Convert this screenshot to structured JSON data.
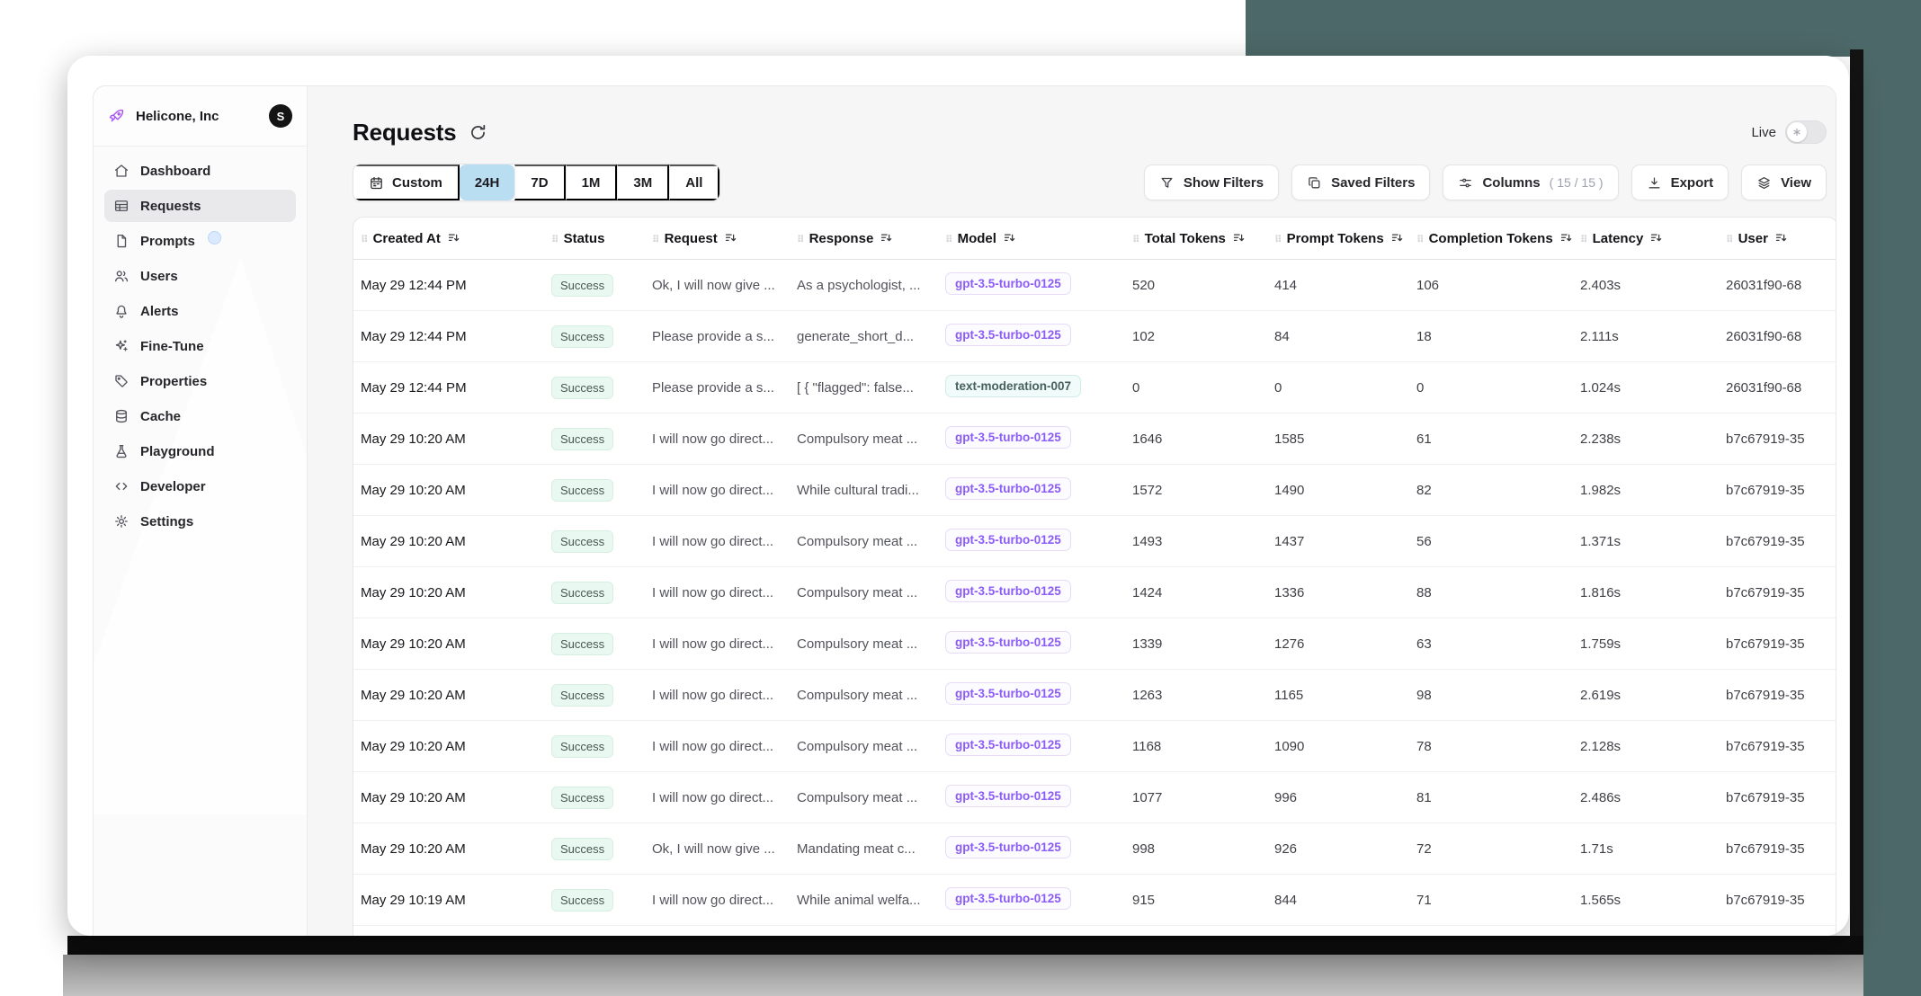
{
  "org": {
    "name": "Helicone, Inc",
    "avatar_initial": "S",
    "logo_icon": "rocket"
  },
  "sidebar": {
    "items": [
      {
        "label": "Dashboard",
        "icon": "home",
        "active": false,
        "badge": false
      },
      {
        "label": "Requests",
        "icon": "table",
        "active": true,
        "badge": false
      },
      {
        "label": "Prompts",
        "icon": "file",
        "active": false,
        "badge": true
      },
      {
        "label": "Users",
        "icon": "users",
        "active": false,
        "badge": false
      },
      {
        "label": "Alerts",
        "icon": "bell",
        "active": false,
        "badge": false
      },
      {
        "label": "Fine-Tune",
        "icon": "sparkles",
        "active": false,
        "badge": false
      },
      {
        "label": "Properties",
        "icon": "tag",
        "active": false,
        "badge": false
      },
      {
        "label": "Cache",
        "icon": "database",
        "active": false,
        "badge": false
      },
      {
        "label": "Playground",
        "icon": "flask",
        "active": false,
        "badge": false
      },
      {
        "label": "Developer",
        "icon": "code",
        "active": false,
        "badge": false
      },
      {
        "label": "Settings",
        "icon": "gear",
        "active": false,
        "badge": false
      }
    ]
  },
  "header": {
    "title": "Requests",
    "live_label": "Live"
  },
  "toolbar": {
    "time_ranges": [
      {
        "label": "Custom",
        "icon": "calendar",
        "selected": false
      },
      {
        "label": "24H",
        "selected": true
      },
      {
        "label": "7D",
        "selected": false
      },
      {
        "label": "1M",
        "selected": false
      },
      {
        "label": "3M",
        "selected": false
      },
      {
        "label": "All",
        "selected": false
      }
    ],
    "actions": [
      {
        "label": "Show Filters",
        "icon": "funnel",
        "count": ""
      },
      {
        "label": "Saved Filters",
        "icon": "copy",
        "count": ""
      },
      {
        "label": "Columns",
        "icon": "sliders",
        "count": "( 15 / 15 )"
      },
      {
        "label": "Export",
        "icon": "download",
        "count": ""
      },
      {
        "label": "View",
        "icon": "layers",
        "count": ""
      }
    ]
  },
  "table": {
    "columns": [
      {
        "label": "Created At",
        "sortable": true
      },
      {
        "label": "Status",
        "sortable": false
      },
      {
        "label": "Request",
        "sortable": true
      },
      {
        "label": "Response",
        "sortable": true
      },
      {
        "label": "Model",
        "sortable": true
      },
      {
        "label": "Total Tokens",
        "sortable": true
      },
      {
        "label": "Prompt Tokens",
        "sortable": true
      },
      {
        "label": "Completion Tokens",
        "sortable": true
      },
      {
        "label": "Latency",
        "sortable": true
      },
      {
        "label": "User",
        "sortable": true
      }
    ],
    "rows": [
      {
        "created_at": "May 29 12:44 PM",
        "status": "Success",
        "request": "Ok, I will now give ...",
        "response": "As a psychologist, ...",
        "model": "gpt-3.5-turbo-0125",
        "model_class": "purple",
        "total_tokens": "520",
        "prompt_tokens": "414",
        "completion_tokens": "106",
        "latency": "2.403s",
        "user": "26031f90-68"
      },
      {
        "created_at": "May 29 12:44 PM",
        "status": "Success",
        "request": "Please provide a s...",
        "response": "generate_short_d...",
        "model": "gpt-3.5-turbo-0125",
        "model_class": "purple",
        "total_tokens": "102",
        "prompt_tokens": "84",
        "completion_tokens": "18",
        "latency": "2.111s",
        "user": "26031f90-68"
      },
      {
        "created_at": "May 29 12:44 PM",
        "status": "Success",
        "request": "Please provide a s...",
        "response": "[ { \"flagged\": false...",
        "model": "text-moderation-007",
        "model_class": "teal",
        "total_tokens": "0",
        "prompt_tokens": "0",
        "completion_tokens": "0",
        "latency": "1.024s",
        "user": "26031f90-68"
      },
      {
        "created_at": "May 29 10:20 AM",
        "status": "Success",
        "request": "I will now go direct...",
        "response": "Compulsory meat ...",
        "model": "gpt-3.5-turbo-0125",
        "model_class": "purple",
        "total_tokens": "1646",
        "prompt_tokens": "1585",
        "completion_tokens": "61",
        "latency": "2.238s",
        "user": "b7c67919-35"
      },
      {
        "created_at": "May 29 10:20 AM",
        "status": "Success",
        "request": "I will now go direct...",
        "response": "While cultural tradi...",
        "model": "gpt-3.5-turbo-0125",
        "model_class": "purple",
        "total_tokens": "1572",
        "prompt_tokens": "1490",
        "completion_tokens": "82",
        "latency": "1.982s",
        "user": "b7c67919-35"
      },
      {
        "created_at": "May 29 10:20 AM",
        "status": "Success",
        "request": "I will now go direct...",
        "response": "Compulsory meat ...",
        "model": "gpt-3.5-turbo-0125",
        "model_class": "purple",
        "total_tokens": "1493",
        "prompt_tokens": "1437",
        "completion_tokens": "56",
        "latency": "1.371s",
        "user": "b7c67919-35"
      },
      {
        "created_at": "May 29 10:20 AM",
        "status": "Success",
        "request": "I will now go direct...",
        "response": "Compulsory meat ...",
        "model": "gpt-3.5-turbo-0125",
        "model_class": "purple",
        "total_tokens": "1424",
        "prompt_tokens": "1336",
        "completion_tokens": "88",
        "latency": "1.816s",
        "user": "b7c67919-35"
      },
      {
        "created_at": "May 29 10:20 AM",
        "status": "Success",
        "request": "I will now go direct...",
        "response": "Compulsory meat ...",
        "model": "gpt-3.5-turbo-0125",
        "model_class": "purple",
        "total_tokens": "1339",
        "prompt_tokens": "1276",
        "completion_tokens": "63",
        "latency": "1.759s",
        "user": "b7c67919-35"
      },
      {
        "created_at": "May 29 10:20 AM",
        "status": "Success",
        "request": "I will now go direct...",
        "response": "Compulsory meat ...",
        "model": "gpt-3.5-turbo-0125",
        "model_class": "purple",
        "total_tokens": "1263",
        "prompt_tokens": "1165",
        "completion_tokens": "98",
        "latency": "2.619s",
        "user": "b7c67919-35"
      },
      {
        "created_at": "May 29 10:20 AM",
        "status": "Success",
        "request": "I will now go direct...",
        "response": "Compulsory meat ...",
        "model": "gpt-3.5-turbo-0125",
        "model_class": "purple",
        "total_tokens": "1168",
        "prompt_tokens": "1090",
        "completion_tokens": "78",
        "latency": "2.128s",
        "user": "b7c67919-35"
      },
      {
        "created_at": "May 29 10:20 AM",
        "status": "Success",
        "request": "I will now go direct...",
        "response": "Compulsory meat ...",
        "model": "gpt-3.5-turbo-0125",
        "model_class": "purple",
        "total_tokens": "1077",
        "prompt_tokens": "996",
        "completion_tokens": "81",
        "latency": "2.486s",
        "user": "b7c67919-35"
      },
      {
        "created_at": "May 29 10:20 AM",
        "status": "Success",
        "request": "Ok, I will now give ...",
        "response": "Mandating meat c...",
        "model": "gpt-3.5-turbo-0125",
        "model_class": "purple",
        "total_tokens": "998",
        "prompt_tokens": "926",
        "completion_tokens": "72",
        "latency": "1.71s",
        "user": "b7c67919-35"
      },
      {
        "created_at": "May 29 10:19 AM",
        "status": "Success",
        "request": "I will now go direct...",
        "response": "While animal welfa...",
        "model": "gpt-3.5-turbo-0125",
        "model_class": "purple",
        "total_tokens": "915",
        "prompt_tokens": "844",
        "completion_tokens": "71",
        "latency": "1.565s",
        "user": "b7c67919-35"
      }
    ]
  },
  "colors": {
    "backdrop_dark": "#4d6868",
    "selected_range_bg": "#b9def2",
    "brand_purple": "#a855f7",
    "model_badge_purple": "#8b5cf6",
    "model_badge_teal": "#46615d",
    "success_text": "#47584e",
    "success_bg": "#e9f8f0"
  }
}
